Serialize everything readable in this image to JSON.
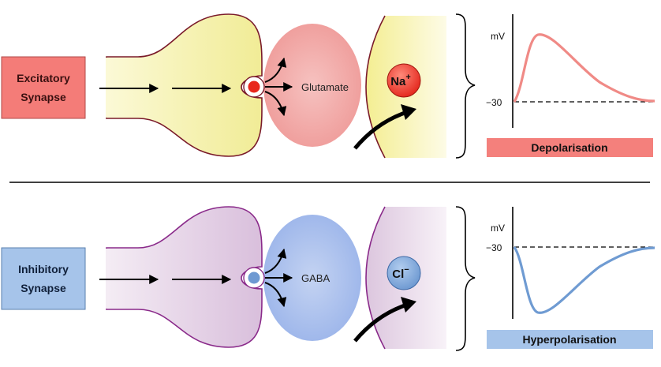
{
  "excitatory": {
    "label_line1": "Excitatory",
    "label_line2": "Synapse",
    "neurotransmitter": "Glutamate",
    "ion_symbol": "Na",
    "ion_charge": "+",
    "axis_unit": "mV",
    "threshold_label": "−30",
    "effect": "Depolarisation"
  },
  "inhibitory": {
    "label_line1": "Inhibitory",
    "label_line2": "Synapse",
    "neurotransmitter": "GABA",
    "ion_symbol": "Cl",
    "ion_charge": "−",
    "axis_unit": "mV",
    "threshold_label": "−30",
    "effect": "Hyperpolarisation"
  },
  "colors": {
    "excitatory_box": "#f47c78",
    "excitatory_bar": "#f4807c",
    "excitatory_trace": "#f08a86",
    "terminal_yellow": "#f4f0a4",
    "glutamate_cloud": "#f2a6a6",
    "na_ion": "#e8271c",
    "inhibitory_box": "#a6c4ea",
    "inhibitory_bar": "#a6c4ea",
    "inhibitory_trace": "#6f9bd2",
    "terminal_purple": "#e2cde3",
    "gaba_cloud": "#a9bfec",
    "cl_ion": "#6e9ad2",
    "outline": "#7a1a2a"
  }
}
